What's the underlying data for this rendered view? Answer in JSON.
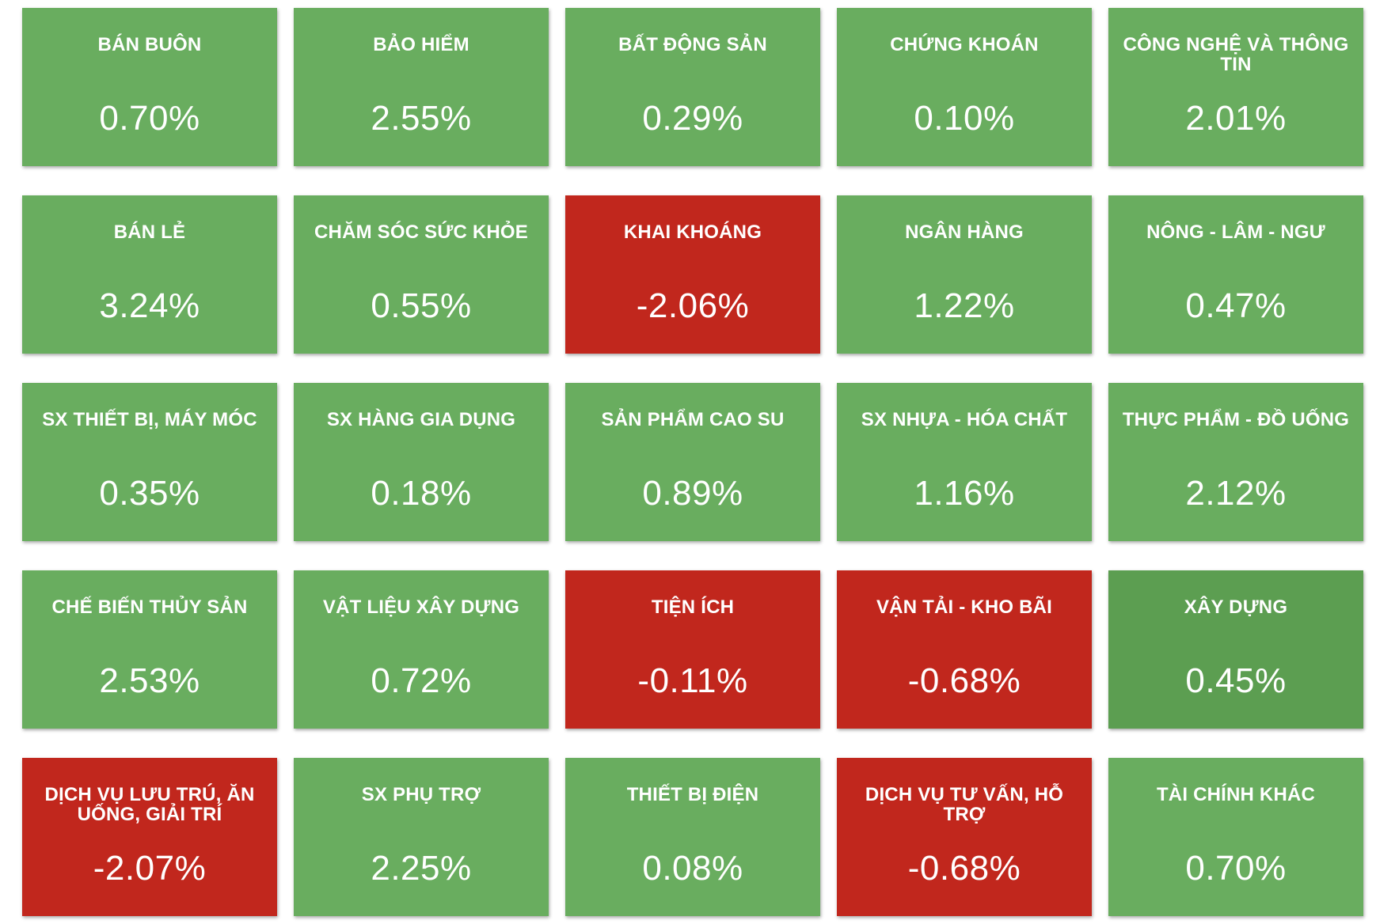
{
  "colors": {
    "up": "#69ad5f",
    "down": "#c1271d",
    "up_dark": "#5c9e51"
  },
  "sectors": [
    {
      "name": "BÁN BUÔN",
      "change": "0.70%",
      "status": "up"
    },
    {
      "name": "BẢO HIỂM",
      "change": "2.55%",
      "status": "up"
    },
    {
      "name": "BẤT ĐỘNG SẢN",
      "change": "0.29%",
      "status": "up"
    },
    {
      "name": "CHỨNG KHOÁN",
      "change": "0.10%",
      "status": "up"
    },
    {
      "name": "CÔNG NGHỆ VÀ THÔNG TIN",
      "change": "2.01%",
      "status": "up"
    },
    {
      "name": "BÁN LẺ",
      "change": "3.24%",
      "status": "up"
    },
    {
      "name": "CHĂM SÓC SỨC KHỎE",
      "change": "0.55%",
      "status": "up"
    },
    {
      "name": "KHAI KHOÁNG",
      "change": "-2.06%",
      "status": "down"
    },
    {
      "name": "NGÂN HÀNG",
      "change": "1.22%",
      "status": "up"
    },
    {
      "name": "NÔNG - LÂM - NGƯ",
      "change": "0.47%",
      "status": "up"
    },
    {
      "name": "SX THIẾT BỊ, MÁY MÓC",
      "change": "0.35%",
      "status": "up"
    },
    {
      "name": "SX HÀNG GIA DỤNG",
      "change": "0.18%",
      "status": "up"
    },
    {
      "name": "SẢN PHẨM CAO SU",
      "change": "0.89%",
      "status": "up"
    },
    {
      "name": "SX NHỰA - HÓA CHẤT",
      "change": "1.16%",
      "status": "up"
    },
    {
      "name": "THỰC PHẨM - ĐỒ UỐNG",
      "change": "2.12%",
      "status": "up"
    },
    {
      "name": "CHẾ BIẾN THỦY SẢN",
      "change": "2.53%",
      "status": "up"
    },
    {
      "name": "VẬT LIỆU XÂY DỰNG",
      "change": "0.72%",
      "status": "up"
    },
    {
      "name": "TIỆN ÍCH",
      "change": "-0.11%",
      "status": "down"
    },
    {
      "name": "VẬN TẢI - KHO BÃI",
      "change": "-0.68%",
      "status": "down"
    },
    {
      "name": "XÂY DỰNG",
      "change": "0.45%",
      "status": "up_dark"
    },
    {
      "name": "DỊCH VỤ LƯU TRÚ, ĂN UỐNG, GIẢI TRÍ",
      "change": "-2.07%",
      "status": "down"
    },
    {
      "name": "SX PHỤ TRỢ",
      "change": "2.25%",
      "status": "up"
    },
    {
      "name": "THIẾT BỊ ĐIỆN",
      "change": "0.08%",
      "status": "up"
    },
    {
      "name": "DỊCH VỤ TƯ VẤN, HỖ TRỢ",
      "change": "-0.68%",
      "status": "down"
    },
    {
      "name": "TÀI CHÍNH KHÁC",
      "change": "0.70%",
      "status": "up"
    }
  ]
}
